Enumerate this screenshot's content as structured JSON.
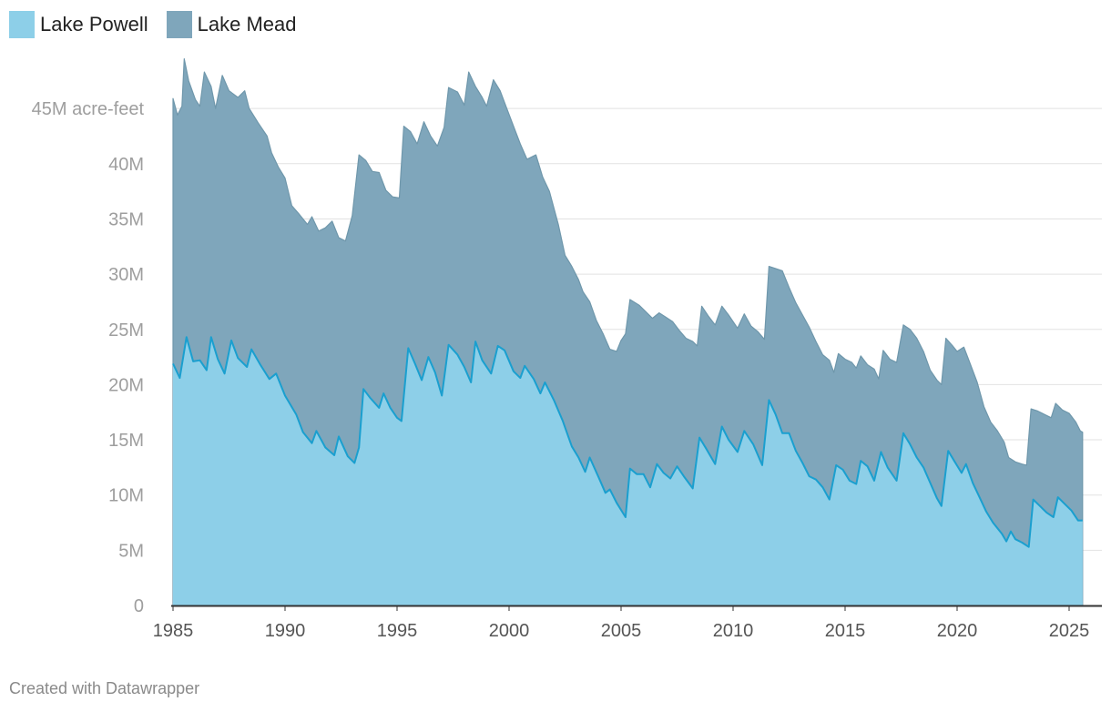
{
  "legend": {
    "items": [
      {
        "label": "Lake Powell",
        "color": "#8dcfe8"
      },
      {
        "label": "Lake Mead",
        "color": "#7fa6bb"
      }
    ]
  },
  "footer": {
    "text": "Created with Datawrapper"
  },
  "chart_data": {
    "type": "area",
    "stacked": true,
    "title": "",
    "xlabel": "",
    "ylabel": "",
    "xlim": [
      1985,
      2025.6
    ],
    "ylim": [
      0,
      45
    ],
    "yunit": "M acre-feet",
    "x_ticks": [
      1985,
      1990,
      1995,
      2000,
      2005,
      2010,
      2015,
      2020,
      2025
    ],
    "x_tick_labels": [
      "1985",
      "1990",
      "1995",
      "2000",
      "2005",
      "2010",
      "2015",
      "2020",
      "2025"
    ],
    "y_ticks": [
      0,
      5,
      10,
      15,
      20,
      25,
      30,
      35,
      40,
      45
    ],
    "y_tick_labels": [
      "0",
      "5M",
      "10M",
      "15M",
      "20M",
      "25M",
      "30M",
      "35M",
      "40M",
      "45M acre-feet"
    ],
    "grid": true,
    "legend_position": "top-left",
    "series": [
      {
        "name": "Lake Powell",
        "color": "#8dcfe8",
        "line_color": "#1a9fcf",
        "points": [
          [
            1985.0,
            21.9
          ],
          [
            1985.3,
            20.6
          ],
          [
            1985.6,
            24.3
          ],
          [
            1985.9,
            22.1
          ],
          [
            1986.2,
            22.2
          ],
          [
            1986.5,
            21.3
          ],
          [
            1986.7,
            24.3
          ],
          [
            1987.0,
            22.3
          ],
          [
            1987.3,
            21.0
          ],
          [
            1987.6,
            24.0
          ],
          [
            1987.9,
            22.4
          ],
          [
            1988.3,
            21.6
          ],
          [
            1988.5,
            23.2
          ],
          [
            1988.9,
            21.8
          ],
          [
            1989.3,
            20.5
          ],
          [
            1989.6,
            21.0
          ],
          [
            1990.0,
            19.0
          ],
          [
            1990.5,
            17.3
          ],
          [
            1990.8,
            15.7
          ],
          [
            1991.2,
            14.7
          ],
          [
            1991.4,
            15.8
          ],
          [
            1991.8,
            14.3
          ],
          [
            1992.2,
            13.6
          ],
          [
            1992.4,
            15.3
          ],
          [
            1992.8,
            13.5
          ],
          [
            1993.1,
            12.9
          ],
          [
            1993.3,
            14.3
          ],
          [
            1993.5,
            19.6
          ],
          [
            1993.8,
            18.8
          ],
          [
            1994.2,
            17.9
          ],
          [
            1994.4,
            19.2
          ],
          [
            1994.7,
            17.9
          ],
          [
            1995.0,
            17.0
          ],
          [
            1995.2,
            16.7
          ],
          [
            1995.5,
            23.3
          ],
          [
            1995.8,
            21.9
          ],
          [
            1996.1,
            20.4
          ],
          [
            1996.4,
            22.5
          ],
          [
            1996.7,
            21.1
          ],
          [
            1997.0,
            19.0
          ],
          [
            1997.3,
            23.6
          ],
          [
            1997.7,
            22.7
          ],
          [
            1998.0,
            21.6
          ],
          [
            1998.3,
            20.2
          ],
          [
            1998.5,
            23.9
          ],
          [
            1998.8,
            22.2
          ],
          [
            1999.2,
            21.0
          ],
          [
            1999.5,
            23.5
          ],
          [
            1999.8,
            23.1
          ],
          [
            2000.2,
            21.2
          ],
          [
            2000.5,
            20.6
          ],
          [
            2000.7,
            21.7
          ],
          [
            2001.1,
            20.5
          ],
          [
            2001.4,
            19.2
          ],
          [
            2001.6,
            20.2
          ],
          [
            2002.0,
            18.6
          ],
          [
            2002.4,
            16.7
          ],
          [
            2002.8,
            14.4
          ],
          [
            2003.1,
            13.4
          ],
          [
            2003.4,
            12.1
          ],
          [
            2003.6,
            13.4
          ],
          [
            2004.0,
            11.6
          ],
          [
            2004.3,
            10.2
          ],
          [
            2004.5,
            10.5
          ],
          [
            2004.8,
            9.3
          ],
          [
            2005.2,
            8.0
          ],
          [
            2005.4,
            12.4
          ],
          [
            2005.7,
            11.9
          ],
          [
            2006.0,
            11.9
          ],
          [
            2006.3,
            10.7
          ],
          [
            2006.6,
            12.8
          ],
          [
            2006.9,
            12.0
          ],
          [
            2007.2,
            11.5
          ],
          [
            2007.5,
            12.6
          ],
          [
            2007.8,
            11.7
          ],
          [
            2008.2,
            10.6
          ],
          [
            2008.5,
            15.2
          ],
          [
            2008.8,
            14.2
          ],
          [
            2009.2,
            12.8
          ],
          [
            2009.5,
            16.2
          ],
          [
            2009.8,
            15.0
          ],
          [
            2010.2,
            13.9
          ],
          [
            2010.5,
            15.8
          ],
          [
            2010.9,
            14.6
          ],
          [
            2011.3,
            12.7
          ],
          [
            2011.6,
            18.6
          ],
          [
            2011.9,
            17.3
          ],
          [
            2012.2,
            15.6
          ],
          [
            2012.5,
            15.6
          ],
          [
            2012.8,
            14.0
          ],
          [
            2013.1,
            12.9
          ],
          [
            2013.4,
            11.7
          ],
          [
            2013.7,
            11.4
          ],
          [
            2014.0,
            10.7
          ],
          [
            2014.3,
            9.6
          ],
          [
            2014.6,
            12.7
          ],
          [
            2014.9,
            12.3
          ],
          [
            2015.2,
            11.3
          ],
          [
            2015.5,
            11.0
          ],
          [
            2015.7,
            13.1
          ],
          [
            2016.0,
            12.6
          ],
          [
            2016.3,
            11.3
          ],
          [
            2016.6,
            13.9
          ],
          [
            2016.9,
            12.5
          ],
          [
            2017.3,
            11.3
          ],
          [
            2017.6,
            15.6
          ],
          [
            2017.9,
            14.6
          ],
          [
            2018.2,
            13.4
          ],
          [
            2018.5,
            12.5
          ],
          [
            2018.8,
            11.1
          ],
          [
            2019.1,
            9.7
          ],
          [
            2019.3,
            9.0
          ],
          [
            2019.6,
            14.0
          ],
          [
            2019.9,
            13.0
          ],
          [
            2020.2,
            12.0
          ],
          [
            2020.4,
            12.8
          ],
          [
            2020.7,
            11.1
          ],
          [
            2021.0,
            9.8
          ],
          [
            2021.3,
            8.5
          ],
          [
            2021.6,
            7.5
          ],
          [
            2022.0,
            6.5
          ],
          [
            2022.2,
            5.8
          ],
          [
            2022.4,
            6.7
          ],
          [
            2022.6,
            6.0
          ],
          [
            2022.9,
            5.7
          ],
          [
            2023.2,
            5.3
          ],
          [
            2023.4,
            9.6
          ],
          [
            2023.7,
            9.0
          ],
          [
            2024.0,
            8.4
          ],
          [
            2024.3,
            8.0
          ],
          [
            2024.5,
            9.8
          ],
          [
            2024.8,
            9.2
          ],
          [
            2025.1,
            8.6
          ],
          [
            2025.4,
            7.7
          ],
          [
            2025.6,
            7.7
          ]
        ]
      },
      {
        "name": "Lake Mead",
        "color": "#7fa6bb",
        "line_color": "#6f97ab",
        "total_points": [
          [
            1985.0,
            45.9
          ],
          [
            1985.2,
            44.4
          ],
          [
            1985.4,
            45.2
          ],
          [
            1985.5,
            49.5
          ],
          [
            1985.7,
            47.5
          ],
          [
            1986.0,
            45.8
          ],
          [
            1986.2,
            45.2
          ],
          [
            1986.4,
            48.3
          ],
          [
            1986.7,
            47.0
          ],
          [
            1986.9,
            45.0
          ],
          [
            1987.2,
            48.0
          ],
          [
            1987.5,
            46.6
          ],
          [
            1987.9,
            46.0
          ],
          [
            1988.2,
            46.6
          ],
          [
            1988.4,
            45.0
          ],
          [
            1988.8,
            43.7
          ],
          [
            1989.2,
            42.5
          ],
          [
            1989.4,
            41.0
          ],
          [
            1989.7,
            39.7
          ],
          [
            1990.0,
            38.7
          ],
          [
            1990.3,
            36.2
          ],
          [
            1990.6,
            35.5
          ],
          [
            1991.0,
            34.5
          ],
          [
            1991.2,
            35.2
          ],
          [
            1991.5,
            33.9
          ],
          [
            1991.8,
            34.2
          ],
          [
            1992.1,
            34.8
          ],
          [
            1992.4,
            33.3
          ],
          [
            1992.7,
            33.0
          ],
          [
            1993.0,
            35.3
          ],
          [
            1993.3,
            40.8
          ],
          [
            1993.6,
            40.3
          ],
          [
            1993.9,
            39.3
          ],
          [
            1994.2,
            39.2
          ],
          [
            1994.5,
            37.6
          ],
          [
            1994.8,
            37.0
          ],
          [
            1995.1,
            36.9
          ],
          [
            1995.3,
            43.4
          ],
          [
            1995.6,
            42.9
          ],
          [
            1995.9,
            41.8
          ],
          [
            1996.2,
            43.8
          ],
          [
            1996.5,
            42.5
          ],
          [
            1996.8,
            41.6
          ],
          [
            1997.1,
            43.3
          ],
          [
            1997.3,
            46.9
          ],
          [
            1997.7,
            46.5
          ],
          [
            1998.0,
            45.3
          ],
          [
            1998.2,
            48.3
          ],
          [
            1998.5,
            47.0
          ],
          [
            1998.8,
            46.0
          ],
          [
            1999.0,
            45.2
          ],
          [
            1999.3,
            47.6
          ],
          [
            1999.6,
            46.6
          ],
          [
            1999.9,
            45.0
          ],
          [
            2000.2,
            43.4
          ],
          [
            2000.5,
            41.8
          ],
          [
            2000.8,
            40.4
          ],
          [
            2001.2,
            40.8
          ],
          [
            2001.5,
            38.8
          ],
          [
            2001.8,
            37.5
          ],
          [
            2002.2,
            34.5
          ],
          [
            2002.5,
            31.7
          ],
          [
            2002.8,
            30.7
          ],
          [
            2003.1,
            29.5
          ],
          [
            2003.3,
            28.4
          ],
          [
            2003.6,
            27.5
          ],
          [
            2003.9,
            25.8
          ],
          [
            2004.2,
            24.6
          ],
          [
            2004.5,
            23.2
          ],
          [
            2004.8,
            23.0
          ],
          [
            2005.0,
            24.0
          ],
          [
            2005.2,
            24.6
          ],
          [
            2005.4,
            27.7
          ],
          [
            2005.8,
            27.2
          ],
          [
            2006.1,
            26.6
          ],
          [
            2006.4,
            26.0
          ],
          [
            2006.7,
            26.5
          ],
          [
            2007.0,
            26.1
          ],
          [
            2007.3,
            25.7
          ],
          [
            2007.6,
            24.9
          ],
          [
            2007.9,
            24.2
          ],
          [
            2008.2,
            23.9
          ],
          [
            2008.4,
            23.5
          ],
          [
            2008.6,
            27.1
          ],
          [
            2008.9,
            26.2
          ],
          [
            2009.2,
            25.4
          ],
          [
            2009.5,
            27.1
          ],
          [
            2009.8,
            26.3
          ],
          [
            2010.2,
            25.1
          ],
          [
            2010.5,
            26.4
          ],
          [
            2010.8,
            25.3
          ],
          [
            2011.1,
            24.8
          ],
          [
            2011.4,
            24.1
          ],
          [
            2011.6,
            30.7
          ],
          [
            2011.9,
            30.5
          ],
          [
            2012.2,
            30.3
          ],
          [
            2012.5,
            28.8
          ],
          [
            2012.8,
            27.4
          ],
          [
            2013.1,
            26.3
          ],
          [
            2013.4,
            25.2
          ],
          [
            2013.7,
            23.9
          ],
          [
            2014.0,
            22.7
          ],
          [
            2014.3,
            22.2
          ],
          [
            2014.5,
            21.1
          ],
          [
            2014.7,
            22.8
          ],
          [
            2015.0,
            22.3
          ],
          [
            2015.3,
            22.0
          ],
          [
            2015.5,
            21.5
          ],
          [
            2015.7,
            22.6
          ],
          [
            2016.0,
            21.8
          ],
          [
            2016.3,
            21.4
          ],
          [
            2016.5,
            20.5
          ],
          [
            2016.7,
            23.1
          ],
          [
            2017.0,
            22.3
          ],
          [
            2017.3,
            22.0
          ],
          [
            2017.6,
            25.4
          ],
          [
            2017.9,
            25.0
          ],
          [
            2018.2,
            24.2
          ],
          [
            2018.5,
            23.0
          ],
          [
            2018.8,
            21.3
          ],
          [
            2019.1,
            20.4
          ],
          [
            2019.3,
            20.0
          ],
          [
            2019.5,
            24.2
          ],
          [
            2019.8,
            23.5
          ],
          [
            2020.0,
            23.0
          ],
          [
            2020.3,
            23.4
          ],
          [
            2020.6,
            21.8
          ],
          [
            2020.9,
            20.2
          ],
          [
            2021.2,
            18.0
          ],
          [
            2021.5,
            16.6
          ],
          [
            2021.8,
            15.8
          ],
          [
            2022.1,
            14.8
          ],
          [
            2022.3,
            13.4
          ],
          [
            2022.6,
            13.0
          ],
          [
            2022.9,
            12.8
          ],
          [
            2023.1,
            12.7
          ],
          [
            2023.3,
            17.8
          ],
          [
            2023.6,
            17.6
          ],
          [
            2023.9,
            17.3
          ],
          [
            2024.2,
            17.0
          ],
          [
            2024.4,
            18.3
          ],
          [
            2024.7,
            17.7
          ],
          [
            2025.0,
            17.4
          ],
          [
            2025.3,
            16.6
          ],
          [
            2025.5,
            15.8
          ],
          [
            2025.6,
            15.7
          ]
        ]
      }
    ]
  }
}
